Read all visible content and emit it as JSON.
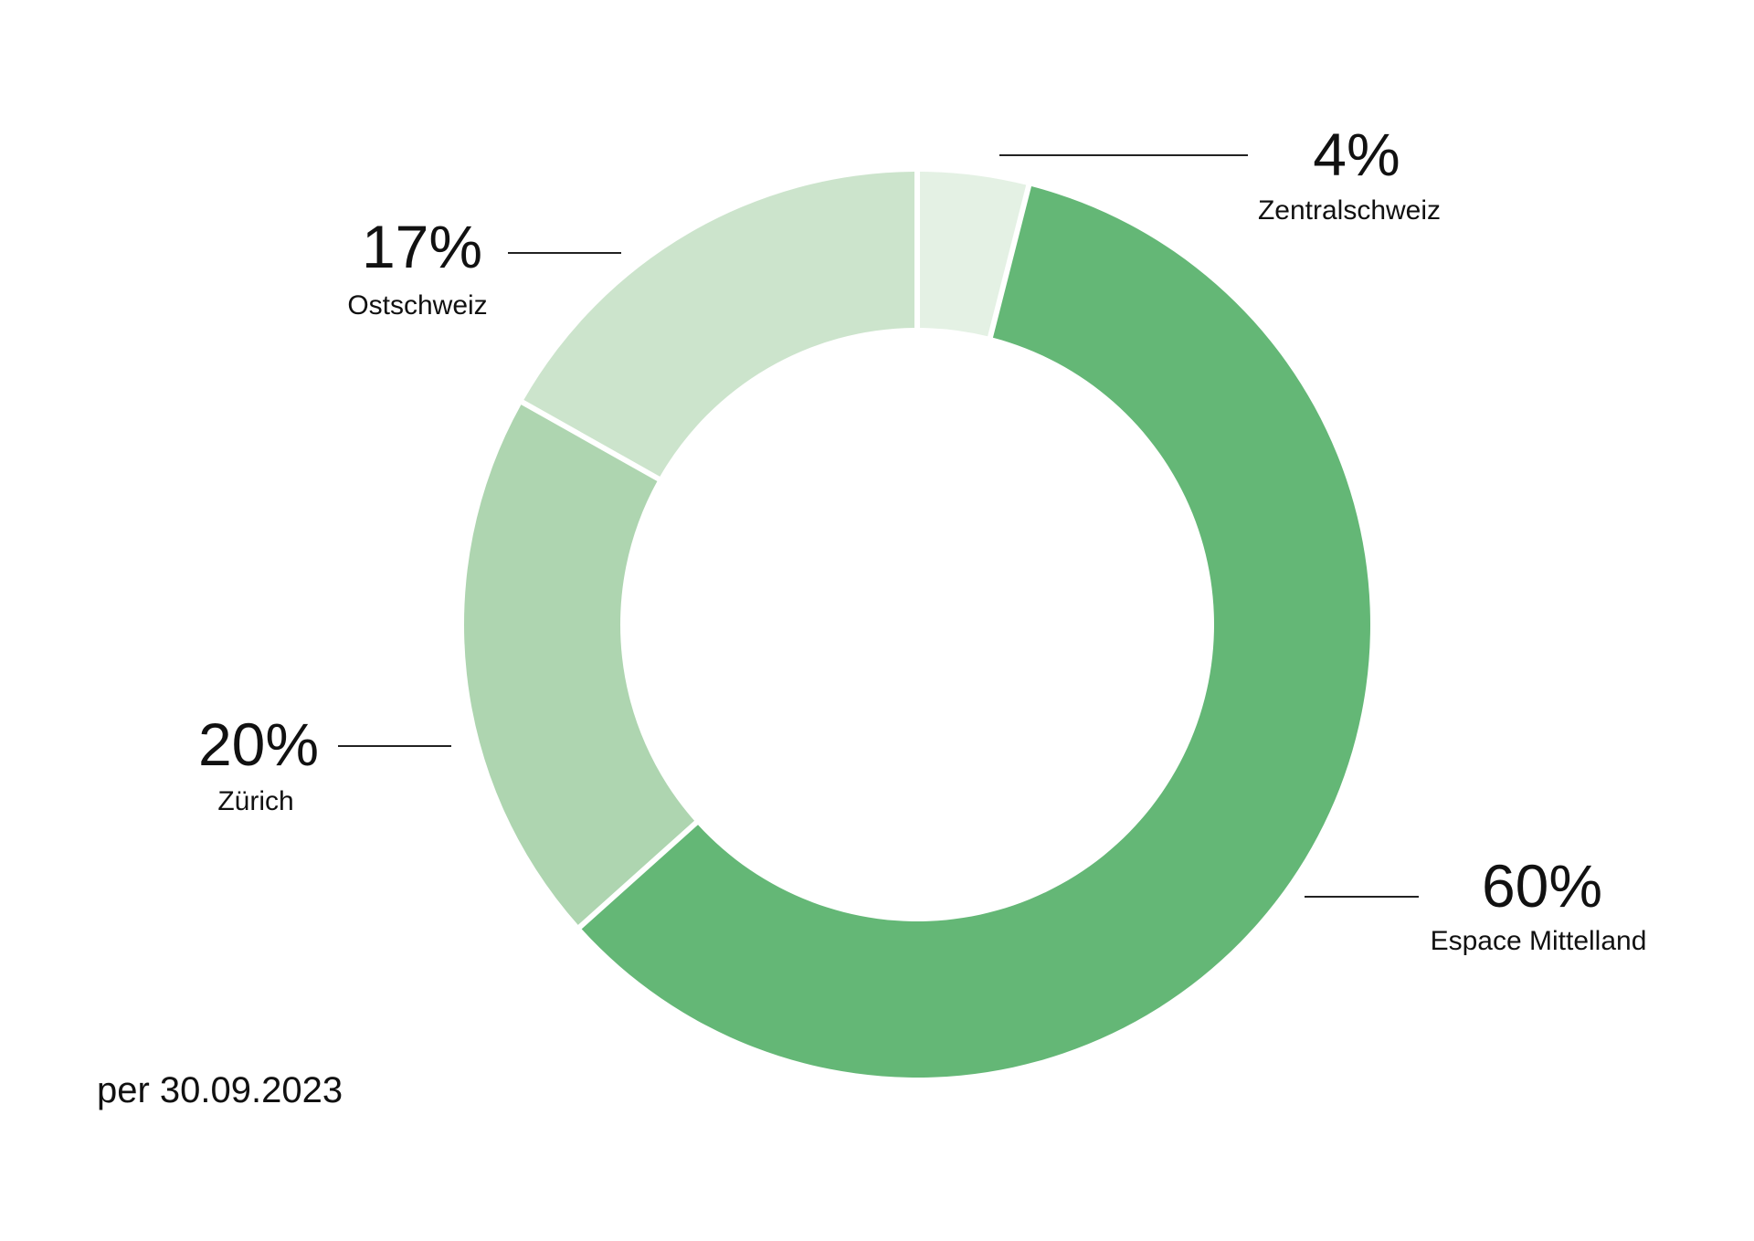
{
  "footnote": "per 30.09.2023",
  "chart_data": {
    "type": "pie",
    "variant": "donut",
    "slices": [
      {
        "name": "Zentralschweiz",
        "value": 4,
        "label": "4%",
        "color": "#e4f1e4"
      },
      {
        "name": "Espace Mittelland",
        "value": 60,
        "label": "60%",
        "color": "#64b776"
      },
      {
        "name": "Zürich",
        "value": 20,
        "label": "20%",
        "color": "#aed5b0"
      },
      {
        "name": "Ostschweiz",
        "value": 17,
        "label": "17%",
        "color": "#cce4cc"
      }
    ],
    "start": "top",
    "direction": "clockwise"
  }
}
